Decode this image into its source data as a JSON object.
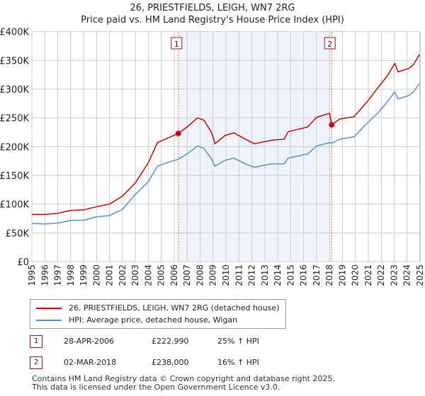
{
  "title_line1": "26, PRIESTFIELDS, LEIGH, WN7 2RG",
  "title_line2": "Price paid vs. HM Land Registry's House Price Index (HPI)",
  "colors": {
    "property": "#cc0000",
    "hpi": "#5b8fd0",
    "shade": "#eef3fc",
    "grid": "#cccccc"
  },
  "chart_data": {
    "type": "line",
    "title": "26, PRIESTFIELDS, LEIGH, WN7 2RG — Price paid vs. HM Land Registry's House Price Index (HPI)",
    "xlim": [
      1995,
      2025
    ],
    "ylim": [
      0,
      400000
    ],
    "x_ticks": [
      "1995",
      "1996",
      "1997",
      "1998",
      "1999",
      "2000",
      "2001",
      "2002",
      "2003",
      "2004",
      "2005",
      "2006",
      "2007",
      "2008",
      "2009",
      "2010",
      "2011",
      "2012",
      "2013",
      "2014",
      "2015",
      "2016",
      "2017",
      "2018",
      "2019",
      "2020",
      "2021",
      "2022",
      "2023",
      "2024",
      "2025"
    ],
    "y_ticks": [
      {
        "v": 0,
        "label": "£0"
      },
      {
        "v": 50000,
        "label": "£50K"
      },
      {
        "v": 100000,
        "label": "£100K"
      },
      {
        "v": 150000,
        "label": "£150K"
      },
      {
        "v": 200000,
        "label": "£200K"
      },
      {
        "v": 250000,
        "label": "£250K"
      },
      {
        "v": 300000,
        "label": "£300K"
      },
      {
        "v": 350000,
        "label": "£350K"
      },
      {
        "v": 400000,
        "label": "£400K"
      }
    ],
    "grid": true,
    "series": [
      {
        "name": "26, PRIESTFIELDS, LEIGH, WN7 2RG (detached house)",
        "key": "property",
        "x": [
          1995.0,
          1996.0,
          1997.0,
          1998.0,
          1999.0,
          2000.0,
          2001.0,
          2002.0,
          2003.0,
          2004.0,
          2004.7,
          2005.3,
          2006.32,
          2007.1,
          2007.8,
          2008.3,
          2008.9,
          2009.15,
          2009.9,
          2010.6,
          2011.5,
          2012.2,
          2013.5,
          2014.5,
          2014.8,
          2016.3,
          2017.0,
          2018.0,
          2018.17,
          2018.8,
          2019.9,
          2020.8,
          2021.8,
          2022.5,
          2023.05,
          2023.3,
          2024.15,
          2024.5,
          2024.95
        ],
        "y": [
          82000,
          82000,
          84000,
          89000,
          90000,
          95600,
          100000,
          114000,
          137000,
          172000,
          207000,
          213000,
          222990,
          236000,
          250000,
          246000,
          224000,
          205000,
          219000,
          224000,
          213000,
          205000,
          211000,
          213000,
          226000,
          234000,
          251000,
          258000,
          238000,
          248000,
          252000,
          275000,
          304000,
          324000,
          345000,
          330000,
          336000,
          343000,
          360000
        ]
      },
      {
        "name": "HPI: Average price, detached house, Wigan",
        "key": "hpi",
        "x": [
          1995.0,
          1996.0,
          1997.0,
          1998.0,
          1999.0,
          2000.0,
          2001.0,
          2002.0,
          2003.0,
          2004.0,
          2004.7,
          2005.3,
          2006.32,
          2007.1,
          2007.8,
          2008.3,
          2008.9,
          2009.15,
          2009.9,
          2010.6,
          2011.5,
          2012.2,
          2013.5,
          2014.5,
          2014.8,
          2016.3,
          2017.0,
          2018.0,
          2018.17,
          2018.8,
          2019.9,
          2020.8,
          2021.8,
          2022.5,
          2023.05,
          2023.3,
          2024.15,
          2024.5,
          2024.95
        ],
        "y": [
          66500,
          65500,
          67000,
          71800,
          72000,
          78000,
          80000,
          91000,
          117000,
          139000,
          166000,
          171000,
          178000,
          189000,
          201000,
          197000,
          178000,
          166000,
          176000,
          180000,
          170000,
          164000,
          170000,
          170000,
          180000,
          187000,
          201000,
          207000,
          206000,
          213000,
          217000,
          238000,
          260000,
          279000,
          295000,
          283000,
          289000,
          295000,
          310000
        ]
      }
    ],
    "annotations": [
      {
        "label": "1",
        "x": 2006.32,
        "y": 222990
      },
      {
        "label": "2",
        "x": 2018.17,
        "y": 238000
      }
    ],
    "shaded_range": [
      2006.32,
      2018.17
    ]
  },
  "legend": [
    {
      "label": "26, PRIESTFIELDS, LEIGH, WN7 2RG (detached house)"
    },
    {
      "label": "HPI: Average price, detached house, Wigan"
    }
  ],
  "sales": [
    {
      "num": "1",
      "date": "28-APR-2006",
      "price": "£222,990",
      "hpi": "25% ↑ HPI"
    },
    {
      "num": "2",
      "date": "02-MAR-2018",
      "price": "£238,000",
      "hpi": "16% ↑ HPI"
    }
  ],
  "footer_line1": "Contains HM Land Registry data © Crown copyright and database right 2025.",
  "footer_line2": "This data is licensed under the Open Government Licence v3.0."
}
